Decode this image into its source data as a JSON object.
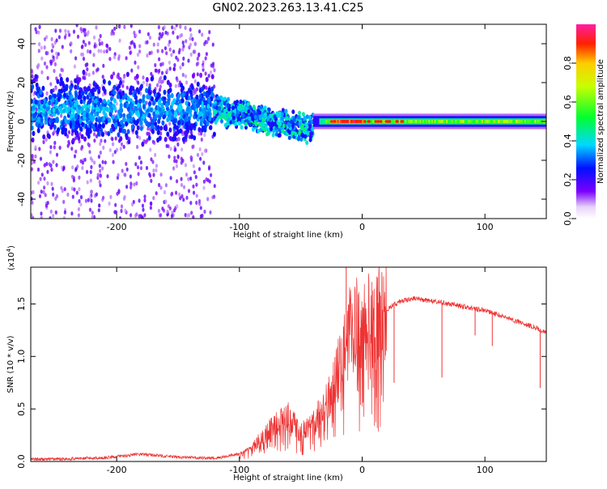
{
  "title": "GN02.2023.263.13.41.C25",
  "chart_data": [
    {
      "type": "heatmap",
      "xlabel": "Height of straight line (km)",
      "ylabel": "Frequency (Hz)",
      "xlim": [
        -270,
        150
      ],
      "ylim": [
        -50,
        50
      ],
      "x_ticks": [
        -200,
        -100,
        0,
        100
      ],
      "y_ticks": [
        -40,
        -20,
        0,
        20,
        40
      ],
      "colorbar": {
        "label": "Normalized spectral amplitude",
        "range": [
          0,
          1
        ],
        "ticks": [
          "0.0",
          "0.2",
          "0.4",
          "0.6",
          "0.8"
        ],
        "colormap": "white-purple-blue-cyan-green-yellow-red-pink"
      },
      "description_bands": [
        {
          "x": [
            -270,
            -120
          ],
          "freq_center": 6,
          "freq_halfwidth": 12,
          "peak_amplitude": 0.35
        },
        {
          "x": [
            -120,
            -40
          ],
          "freq_center_start": 6,
          "freq_center_end": -8,
          "freq_halfwidth": 5,
          "peak_amplitude": 0.45
        },
        {
          "x": [
            -40,
            150
          ],
          "freq_center": 0,
          "freq_halfwidth": 3,
          "peak_amplitude": 0.95
        }
      ]
    },
    {
      "type": "line",
      "xlabel": "Height of straight line (km)",
      "ylabel": "SNR (10 * v/v)",
      "y_multiplier": "(x10",
      "y_multiplier_exp": "4",
      "y_multiplier_close": ")",
      "xlim": [
        -270,
        150
      ],
      "ylim": [
        0,
        18500
      ],
      "x_ticks": [
        -200,
        -100,
        0,
        100
      ],
      "y_ticks": [
        0,
        5000,
        10000,
        15000
      ],
      "y_tick_labels": [
        "0.0",
        "0.5",
        "1.0",
        "1.5"
      ],
      "series": [
        {
          "color": "#ee3333",
          "x": [
            -270,
            -240,
            -210,
            -180,
            -150,
            -120,
            -100,
            -90,
            -80,
            -70,
            -60,
            -50,
            -40,
            -30,
            -25,
            -20,
            -15,
            -10,
            -5,
            0,
            10,
            20,
            30,
            40,
            50,
            60,
            70,
            80,
            90,
            100,
            110,
            120,
            130,
            140,
            150
          ],
          "y": [
            200,
            250,
            350,
            700,
            400,
            300,
            700,
            1400,
            2500,
            3600,
            4300,
            2800,
            3500,
            5500,
            7000,
            8500,
            11000,
            12500,
            13000,
            13000,
            13500,
            14500,
            15200,
            15500,
            15400,
            15200,
            15000,
            14800,
            14600,
            14400,
            14000,
            13600,
            13200,
            12800,
            12200
          ]
        }
      ],
      "spikes": [
        {
          "x": -13,
          "y": 18500
        },
        {
          "x": 26,
          "y": 7500
        },
        {
          "x": 65,
          "y": 8000
        },
        {
          "x": 92,
          "y": 12000
        },
        {
          "x": 100,
          "y": 14500
        },
        {
          "x": 106,
          "y": 11000
        },
        {
          "x": 145,
          "y": 7000
        }
      ]
    }
  ]
}
